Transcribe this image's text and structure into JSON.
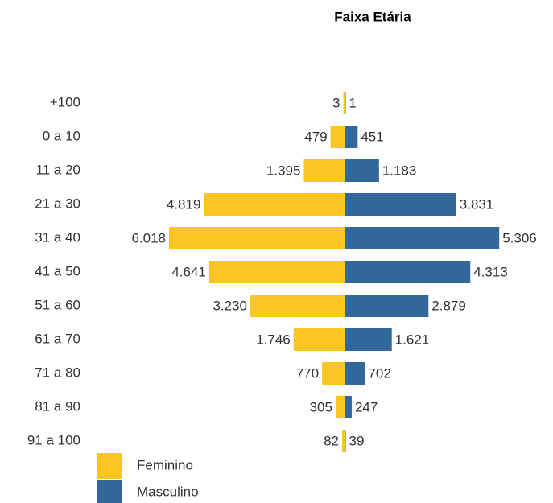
{
  "chart_data": {
    "type": "pyramid",
    "title": "Faixa Etária",
    "categories": [
      "+100",
      "0 a 10",
      "11 a 20",
      "21 a 30",
      "31 a 40",
      "41 a 50",
      "51 a 60",
      "61 a 70",
      "71 a 80",
      "81 a 90",
      "91 a 100"
    ],
    "series": [
      {
        "name": "Feminino",
        "color": "#f9c623",
        "side": "left",
        "values": [
          3,
          479,
          1395,
          4819,
          6018,
          4641,
          3230,
          1746,
          770,
          305,
          82
        ],
        "value_labels": [
          "3",
          "479",
          "1.395",
          "4.819",
          "6.018",
          "4.641",
          "3.230",
          "1.746",
          "770",
          "305",
          "82"
        ]
      },
      {
        "name": "Masculino",
        "color": "#336699",
        "side": "right",
        "values": [
          1,
          451,
          1183,
          3831,
          5306,
          4313,
          2879,
          1621,
          702,
          247,
          39
        ],
        "value_labels": [
          "1",
          "451",
          "1.183",
          "3.831",
          "5.306",
          "4.313",
          "2.879",
          "1.621",
          "702",
          "247",
          "39"
        ]
      }
    ]
  }
}
